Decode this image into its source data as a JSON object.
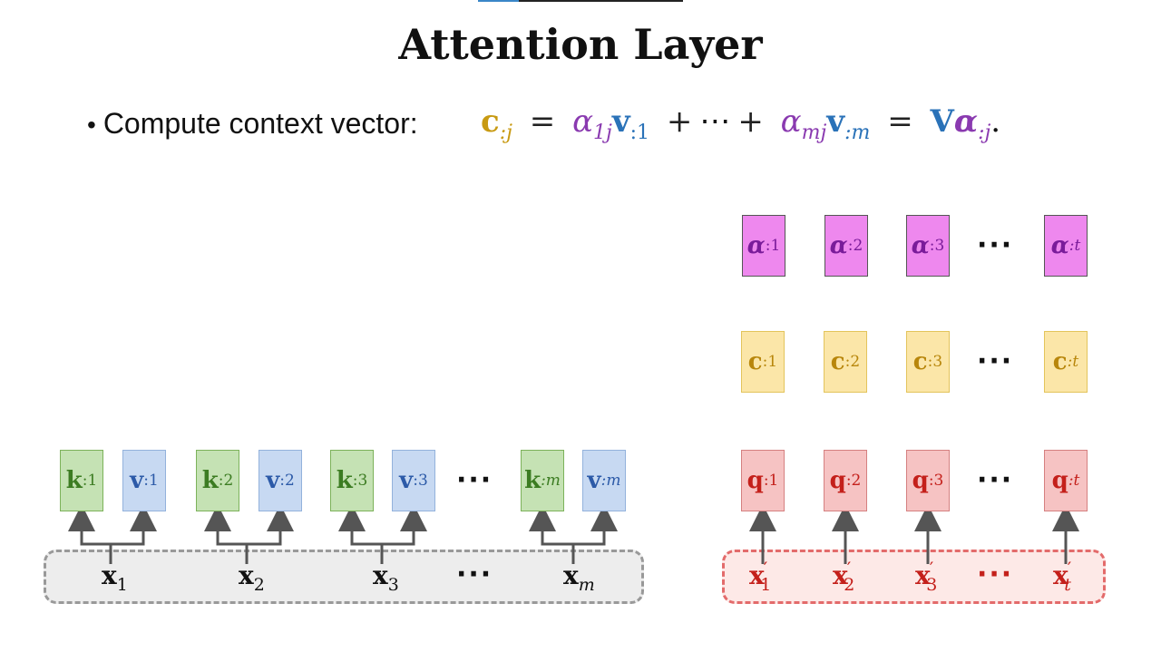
{
  "title": "Attention Layer",
  "bullet": {
    "text": "Compute context vector:"
  },
  "equation": {
    "lhs": "c",
    "lhs_sub": ":j",
    "eq": "=",
    "t1_coef": "α",
    "t1_coef_sub": "1j",
    "t1_vec": "v",
    "t1_vec_sub": ":1",
    "plus1": "+",
    "cdots": "⋯",
    "plus2": "+",
    "t2_coef": "α",
    "t2_coef_sub": "mj",
    "t2_vec": "v",
    "t2_vec_sub": ":m",
    "eq2": "=",
    "matrix": "V",
    "alpha": "α",
    "alpha_sub": ":j",
    "period": "."
  },
  "encoder": {
    "keys": [
      {
        "sym": "k",
        "sub": ":1"
      },
      {
        "sym": "k",
        "sub": ":2"
      },
      {
        "sym": "k",
        "sub": ":3"
      },
      {
        "sym": "k",
        "sub": ":m"
      }
    ],
    "values": [
      {
        "sym": "v",
        "sub": ":1"
      },
      {
        "sym": "v",
        "sub": ":2"
      },
      {
        "sym": "v",
        "sub": ":3"
      },
      {
        "sym": "v",
        "sub": ":m"
      }
    ],
    "inputs": [
      {
        "sym": "x",
        "sub": "1"
      },
      {
        "sym": "x",
        "sub": "2"
      },
      {
        "sym": "x",
        "sub": "3"
      },
      {
        "sym": "x",
        "sub": "m"
      }
    ],
    "ellipsis": "···"
  },
  "decoder": {
    "alphas": [
      {
        "sym": "α",
        "sub": ":1"
      },
      {
        "sym": "α",
        "sub": ":2"
      },
      {
        "sym": "α",
        "sub": ":3"
      },
      {
        "sym": "α",
        "sub": ":t"
      }
    ],
    "contexts": [
      {
        "sym": "c",
        "sub": ":1"
      },
      {
        "sym": "c",
        "sub": ":2"
      },
      {
        "sym": "c",
        "sub": ":3"
      },
      {
        "sym": "c",
        "sub": ":t"
      }
    ],
    "queries": [
      {
        "sym": "q",
        "sub": ":1"
      },
      {
        "sym": "q",
        "sub": ":2"
      },
      {
        "sym": "q",
        "sub": ":3"
      },
      {
        "sym": "q",
        "sub": ":t"
      }
    ],
    "inputs": [
      {
        "sym": "x",
        "prime": "′",
        "sub": "1"
      },
      {
        "sym": "x",
        "prime": "′",
        "sub": "2"
      },
      {
        "sym": "x",
        "prime": "′",
        "sub": "3"
      },
      {
        "sym": "x",
        "prime": "′",
        "sub": "t"
      }
    ],
    "ellipsis": "···"
  },
  "colors": {
    "key": "#3c7c22",
    "value": "#2c5aa8",
    "query": "#c4201b",
    "context": "#b8860b",
    "alpha": "#7a1c9a"
  }
}
